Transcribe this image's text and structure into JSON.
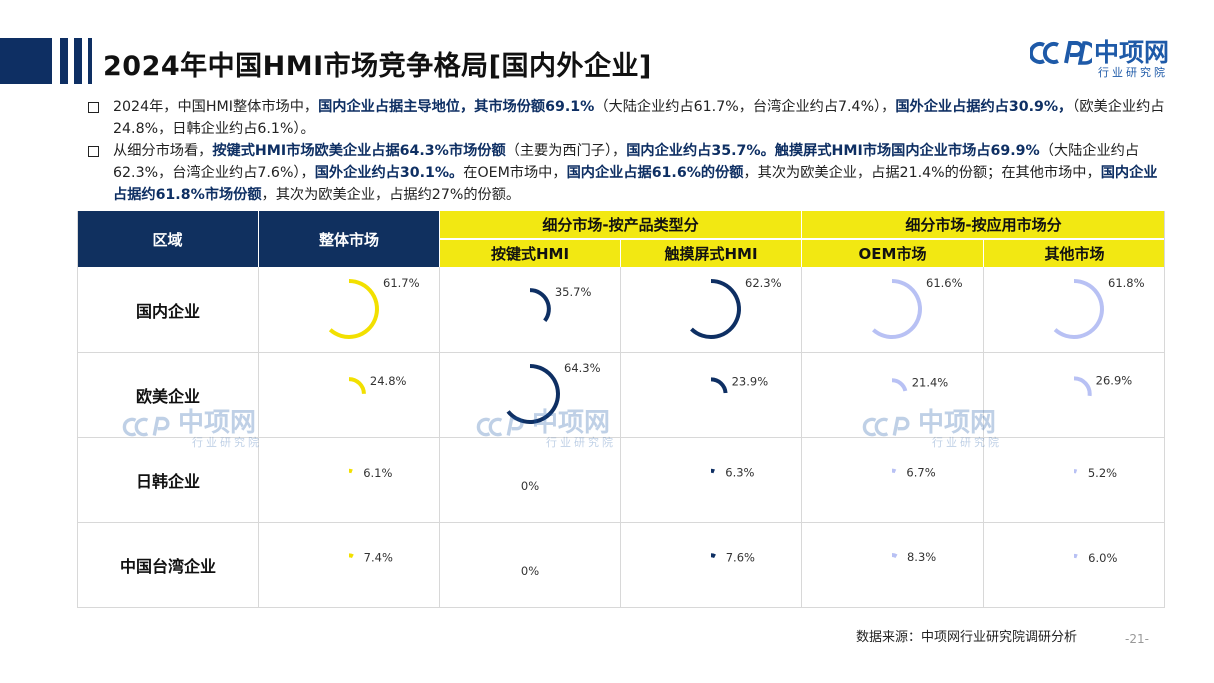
{
  "title": "2024年中国HMI市场竞争格局[国内外企业]",
  "logo": {
    "brand": "中项网",
    "sub": "行业研究院",
    "mark": "CCPD"
  },
  "bullets": [
    {
      "parts": [
        {
          "t": "2024年，中国HMI整体市场中，",
          "b": false
        },
        {
          "t": "国内企业占据主导地位，其市场份额69.1%",
          "b": true
        },
        {
          "t": "（大陆企业约占61.7%，台湾企业约占7.4%），",
          "b": false
        },
        {
          "t": "国外企业占据约占30.9%，",
          "b": true
        },
        {
          "t": "（欧美企业约占24.8%，日韩企业约占6.1%）。",
          "b": false
        }
      ]
    },
    {
      "parts": [
        {
          "t": "从细分市场看，",
          "b": false
        },
        {
          "t": "按键式HMI市场欧美企业占据64.3%市场份额",
          "b": true
        },
        {
          "t": "（主要为西门子），",
          "b": false
        },
        {
          "t": "国内企业约占35.7%。触摸屏式HMI市场国内企业市场占69.9%",
          "b": true
        },
        {
          "t": "（大陆企业约占62.3%，台湾企业约占7.6%），",
          "b": false
        },
        {
          "t": "国外企业约占30.1%。",
          "b": true
        },
        {
          "t": "在OEM市场中，",
          "b": false
        },
        {
          "t": "国内企业占据61.6%的份额",
          "b": true
        },
        {
          "t": "，其次为欧美企业，占据21.4%的份额；在其他市场中，",
          "b": false
        },
        {
          "t": "国内企业占据约61.8%市场份额",
          "b": true
        },
        {
          "t": "，其次为欧美企业，占据约27%的份额。",
          "b": false
        }
      ]
    }
  ],
  "table": {
    "region_header": "区域",
    "overall_header": "整体市场",
    "group_product": "细分市场-按产品类型分",
    "group_application": "细分市场-按应用市场分",
    "sub_headers": [
      "按键式HMI",
      "触摸屏式HMI",
      "OEM市场",
      "其他市场"
    ],
    "row_labels": [
      "国内企业",
      "欧美企业",
      "日韩企业",
      "中国台湾企业"
    ]
  },
  "chart_data": {
    "type": "table",
    "subtype": "radial-gauge",
    "columns": [
      "整体市场",
      "按键式HMI",
      "触摸屏式HMI",
      "OEM市场",
      "其他市场"
    ],
    "rows": [
      "国内企业",
      "欧美企业",
      "日韩企业",
      "中国台湾企业"
    ],
    "values": [
      [
        61.7,
        35.7,
        62.3,
        61.6,
        61.8
      ],
      [
        24.8,
        64.3,
        23.9,
        21.4,
        26.9
      ],
      [
        6.1,
        0,
        6.3,
        6.7,
        5.2
      ],
      [
        7.4,
        0,
        7.6,
        8.3,
        6.0
      ]
    ],
    "labels": [
      [
        "61.7%",
        "35.7%",
        "62.3%",
        "61.6%",
        "61.8%"
      ],
      [
        "24.8%",
        "64.3%",
        "23.9%",
        "21.4%",
        "26.9%"
      ],
      [
        "6.1%",
        "0%",
        "6.3%",
        "6.7%",
        "5.2%"
      ],
      [
        "7.4%",
        "0%",
        "7.6%",
        "8.3%",
        "6.0%"
      ]
    ],
    "colors": [
      "#f2e000",
      "#0e2f63",
      "#0e2f63",
      "#b8c1f4",
      "#b8c1f4"
    ]
  },
  "source": "数据来源：中项网行业研究院调研分析",
  "page_number": "-21-",
  "colors": {
    "navy": "#10305f",
    "yellow": "#f2e812",
    "accent_blue": "#1e5aa8"
  }
}
